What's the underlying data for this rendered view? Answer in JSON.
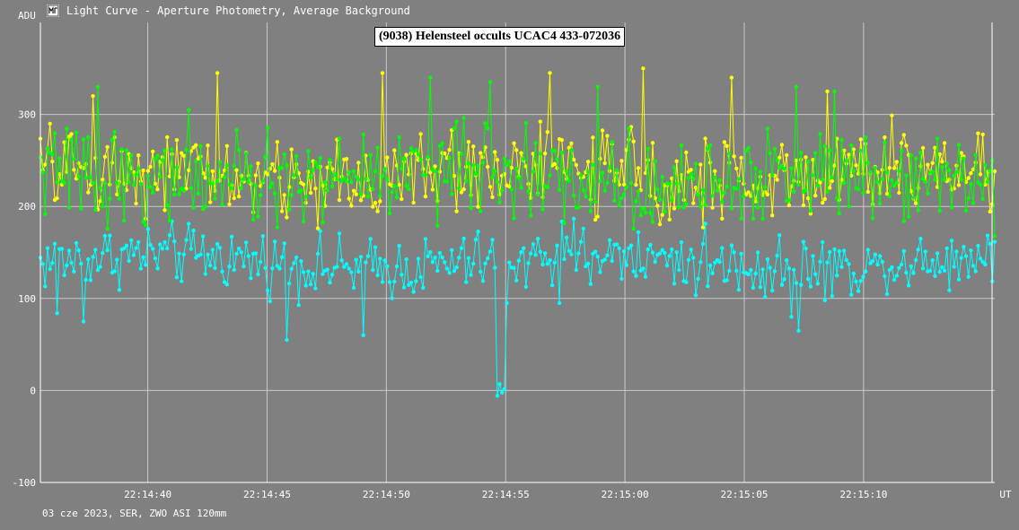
{
  "window": {
    "title": "Light Curve - Aperture Photometry, Average Background",
    "icon": "light-curve-icon"
  },
  "colors": {
    "background": "#808080",
    "grid": "#c8c8c8",
    "axis": "#ffffff",
    "series_yellow": "#ffff00",
    "series_green": "#00ff00",
    "series_cyan": "#00ffff"
  },
  "footer": "03 cze 2023, SER, ZWO ASI 120mm",
  "chart_data": {
    "type": "line",
    "title": "(9038) Helensteel occults UCAC4 433-072036",
    "ylabel": "ADU",
    "xlabel": "UT",
    "ylim": [
      -100,
      400
    ],
    "xlim": [
      35.5,
      75.5
    ],
    "yticks": [
      -100,
      0,
      100,
      200,
      300
    ],
    "xticks": [
      {
        "value": 40,
        "label": "22:14:40"
      },
      {
        "value": 45,
        "label": "22:14:45"
      },
      {
        "value": 50,
        "label": "22:14:50"
      },
      {
        "value": 55,
        "label": "22:14:55"
      },
      {
        "value": 60,
        "label": "22:15:00"
      },
      {
        "value": 65,
        "label": "22:15:05"
      },
      {
        "value": 70,
        "label": "22:15:10"
      }
    ],
    "grid": true,
    "x_units": "seconds after 22:14:00 UT",
    "sample_count": 400,
    "series": [
      {
        "color": "#00ffff",
        "mean": 140,
        "spread": 20,
        "outliers": [
          [
            0.7,
            84
          ],
          [
            1.8,
            75
          ],
          [
            10.3,
            55
          ],
          [
            13.5,
            60
          ],
          [
            19.5,
            95
          ],
          [
            21.8,
            95
          ],
          [
            31.8,
            65
          ],
          [
            31.5,
            80
          ]
        ],
        "dip": {
          "start": 54.6,
          "end": 55.0,
          "value": 0
        }
      },
      {
        "color": "#ffff00",
        "mean": 235,
        "spread": 28,
        "outliers": [
          [
            2.2,
            320
          ],
          [
            7.4,
            345
          ],
          [
            14.3,
            345
          ],
          [
            21.4,
            345
          ],
          [
            25.3,
            350
          ],
          [
            29.0,
            340
          ],
          [
            33.0,
            325
          ]
        ]
      },
      {
        "color": "#00ff00",
        "mean": 232,
        "spread": 30,
        "outliers": [
          [
            2.4,
            330
          ],
          [
            6.2,
            305
          ],
          [
            16.3,
            340
          ],
          [
            18.8,
            335
          ],
          [
            23.4,
            330
          ],
          [
            31.7,
            330
          ],
          [
            33.3,
            325
          ]
        ]
      }
    ]
  }
}
